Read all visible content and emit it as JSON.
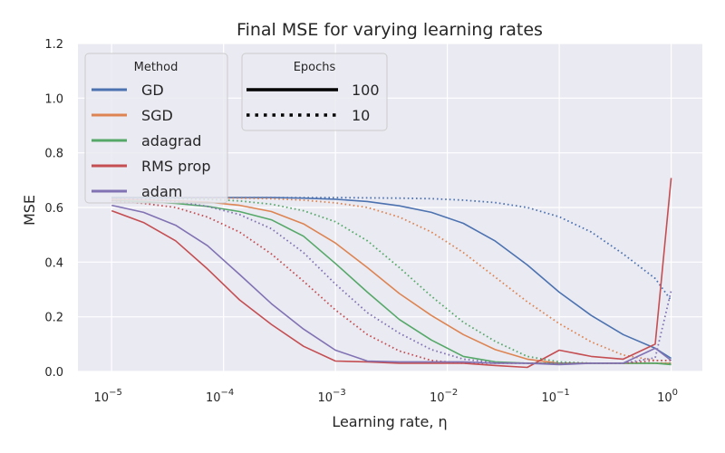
{
  "chart_data": {
    "type": "line",
    "title": "Final MSE for varying learning rates",
    "xlabel": "Learning rate, η",
    "ylabel": "MSE",
    "xscale": "log",
    "xlim": [
      5e-06,
      1.9
    ],
    "ylim": [
      0,
      1.2
    ],
    "grid": true,
    "x_ticks": [
      {
        "value": 1e-05,
        "base": "10",
        "exp": "−5"
      },
      {
        "value": 0.0001,
        "base": "10",
        "exp": "−4"
      },
      {
        "value": 0.001,
        "base": "10",
        "exp": "−3"
      },
      {
        "value": 0.01,
        "base": "10",
        "exp": "−2"
      },
      {
        "value": 0.1,
        "base": "10",
        "exp": "−1"
      },
      {
        "value": 1,
        "base": "10",
        "exp": "0"
      }
    ],
    "y_ticks": [
      "0.0",
      "0.2",
      "0.4",
      "0.6",
      "0.8",
      "1.0",
      "1.2"
    ],
    "x": [
      1e-05,
      1.93e-05,
      3.73e-05,
      7.2e-05,
      0.000139,
      0.000268,
      0.000518,
      0.001,
      0.00193,
      0.00373,
      0.0072,
      0.0139,
      0.0268,
      0.0518,
      0.1,
      0.193,
      0.373,
      0.72,
      1
    ],
    "legend_method": {
      "title": "Method",
      "placement": "upper-left",
      "entries": [
        {
          "name": "GD",
          "color": "#4c72b0"
        },
        {
          "name": "SGD",
          "color": "#dd8452"
        },
        {
          "name": "adagrad",
          "color": "#55a868"
        },
        {
          "name": "RMS prop",
          "color": "#c44e52"
        },
        {
          "name": "adam",
          "color": "#8172b3"
        }
      ]
    },
    "legend_epochs": {
      "title": "Epochs",
      "placement": "upper-center",
      "entries": [
        {
          "name": "100",
          "style": "solid"
        },
        {
          "name": "10",
          "style": "dotted"
        }
      ]
    },
    "series": [
      {
        "method": "GD",
        "epochs": "100",
        "color": "#4c72b0",
        "style": "solid",
        "values": [
          0.636,
          0.636,
          0.636,
          0.636,
          0.636,
          0.636,
          0.634,
          0.63,
          0.622,
          0.606,
          0.582,
          0.542,
          0.477,
          0.39,
          0.29,
          0.205,
          0.135,
          0.085,
          0.048
        ]
      },
      {
        "method": "GD",
        "epochs": "10",
        "color": "#4c72b0",
        "style": "dotted",
        "values": [
          0.636,
          0.636,
          0.636,
          0.636,
          0.636,
          0.636,
          0.636,
          0.636,
          0.635,
          0.634,
          0.632,
          0.627,
          0.618,
          0.6,
          0.566,
          0.51,
          0.43,
          0.34,
          0.26
        ]
      },
      {
        "method": "SGD",
        "epochs": "100",
        "color": "#dd8452",
        "style": "solid",
        "values": [
          0.63,
          0.628,
          0.625,
          0.62,
          0.608,
          0.585,
          0.54,
          0.47,
          0.38,
          0.285,
          0.205,
          0.135,
          0.08,
          0.045,
          0.03,
          0.03,
          0.03,
          0.03,
          0.03
        ]
      },
      {
        "method": "SGD",
        "epochs": "10",
        "color": "#dd8452",
        "style": "dotted",
        "values": [
          0.636,
          0.636,
          0.636,
          0.635,
          0.634,
          0.632,
          0.627,
          0.617,
          0.6,
          0.565,
          0.51,
          0.435,
          0.345,
          0.255,
          0.175,
          0.108,
          0.06,
          0.04,
          0.04
        ]
      },
      {
        "method": "adagrad",
        "epochs": "100",
        "color": "#55a868",
        "style": "solid",
        "values": [
          0.625,
          0.622,
          0.615,
          0.604,
          0.585,
          0.555,
          0.495,
          0.395,
          0.29,
          0.19,
          0.115,
          0.055,
          0.035,
          0.03,
          0.03,
          0.03,
          0.03,
          0.03,
          0.025
        ]
      },
      {
        "method": "adagrad",
        "epochs": "10",
        "color": "#55a868",
        "style": "dotted",
        "values": [
          0.636,
          0.635,
          0.633,
          0.63,
          0.624,
          0.612,
          0.588,
          0.548,
          0.478,
          0.38,
          0.275,
          0.18,
          0.11,
          0.055,
          0.035,
          0.03,
          0.03,
          0.03,
          0.03
        ]
      },
      {
        "method": "RMS prop",
        "epochs": "100",
        "color": "#c44e52",
        "style": "solid",
        "values": [
          0.588,
          0.545,
          0.478,
          0.375,
          0.262,
          0.172,
          0.092,
          0.038,
          0.035,
          0.03,
          0.03,
          0.03,
          0.022,
          0.015,
          0.078,
          0.055,
          0.045,
          0.1,
          0.708
        ]
      },
      {
        "method": "RMS prop",
        "epochs": "10",
        "color": "#c44e52",
        "style": "dotted",
        "values": [
          0.625,
          0.615,
          0.6,
          0.565,
          0.51,
          0.43,
          0.33,
          0.225,
          0.135,
          0.075,
          0.04,
          0.03,
          0.03,
          0.03,
          0.03,
          0.03,
          0.03,
          0.04,
          0.04
        ]
      },
      {
        "method": "adam",
        "epochs": "100",
        "color": "#8172b3",
        "style": "solid",
        "values": [
          0.608,
          0.582,
          0.535,
          0.46,
          0.355,
          0.248,
          0.155,
          0.078,
          0.038,
          0.035,
          0.035,
          0.035,
          0.03,
          0.03,
          0.025,
          0.03,
          0.03,
          0.085,
          0.04
        ]
      },
      {
        "method": "adam",
        "epochs": "10",
        "color": "#8172b3",
        "style": "dotted",
        "values": [
          0.634,
          0.63,
          0.622,
          0.604,
          0.574,
          0.522,
          0.435,
          0.32,
          0.215,
          0.14,
          0.08,
          0.045,
          0.032,
          0.03,
          0.03,
          0.03,
          0.03,
          0.05,
          0.295
        ]
      }
    ]
  }
}
